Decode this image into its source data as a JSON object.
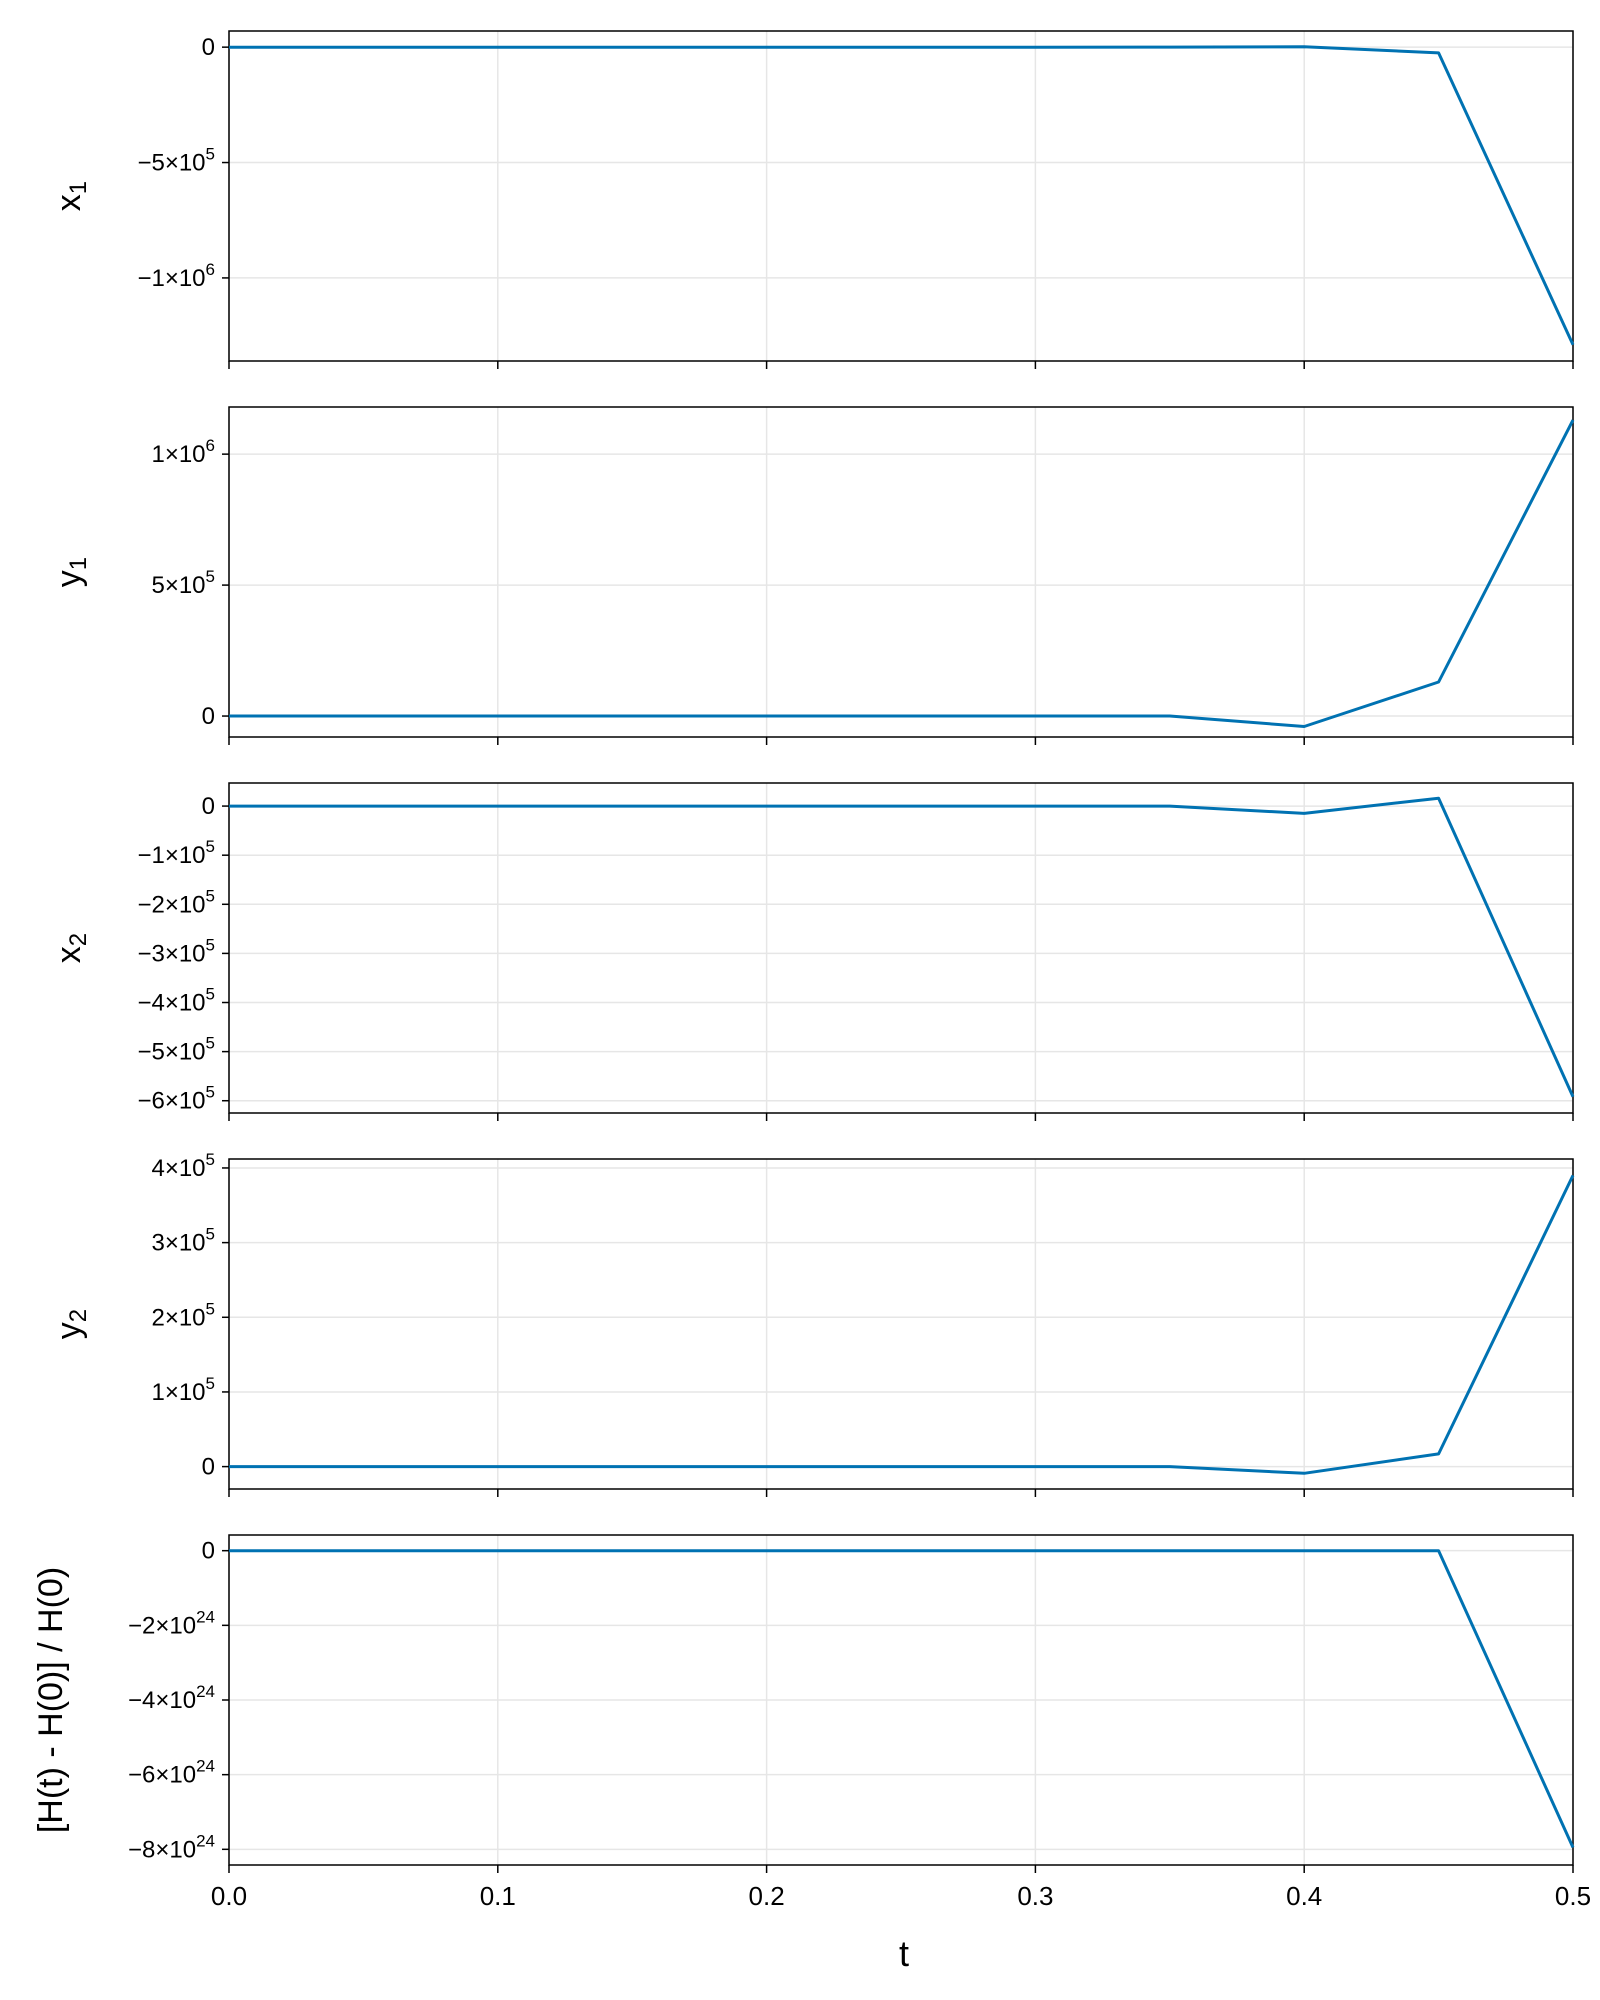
{
  "figure": {
    "xlabel": "t"
  },
  "colors": {
    "line": "#0072b2",
    "grid": "#e6e6e6",
    "frame": "#000000",
    "text": "#000000"
  },
  "chart_data": [
    {
      "type": "line",
      "ylabel_base": "x",
      "ylabel_sub": "1",
      "x": [
        0.0,
        0.05,
        0.1,
        0.15,
        0.2,
        0.25,
        0.3,
        0.35,
        0.4,
        0.45,
        0.5
      ],
      "y": [
        0,
        0,
        0,
        0,
        0,
        0,
        0,
        200,
        1500,
        -25000,
        -1290000
      ],
      "ylim": [
        -1360000,
        70000
      ],
      "yticks": [
        {
          "v": 0,
          "m": "0",
          "e": ""
        },
        {
          "v": -500000,
          "m": "−5×10",
          "e": "5"
        },
        {
          "v": -1000000,
          "m": "−1×10",
          "e": "6"
        }
      ],
      "xlim": [
        0,
        0.5
      ],
      "grid": true
    },
    {
      "type": "line",
      "ylabel_base": "y",
      "ylabel_sub": "1",
      "x": [
        0.0,
        0.05,
        0.1,
        0.15,
        0.2,
        0.25,
        0.3,
        0.35,
        0.4,
        0.45,
        0.5
      ],
      "y": [
        0,
        0,
        0,
        0,
        0,
        0,
        0,
        300,
        -40000,
        130000,
        1130000
      ],
      "ylim": [
        -80000,
        1180000
      ],
      "yticks": [
        {
          "v": 0,
          "m": "0",
          "e": ""
        },
        {
          "v": 500000,
          "m": "5×10",
          "e": "5"
        },
        {
          "v": 1000000,
          "m": "1×10",
          "e": "6"
        }
      ],
      "xlim": [
        0,
        0.5
      ],
      "grid": true
    },
    {
      "type": "line",
      "ylabel_base": "x",
      "ylabel_sub": "2",
      "x": [
        0.0,
        0.05,
        0.1,
        0.15,
        0.2,
        0.25,
        0.3,
        0.35,
        0.4,
        0.45,
        0.5
      ],
      "y": [
        0,
        0,
        0,
        0,
        0,
        0,
        0,
        0,
        -15000,
        16000,
        -592000
      ],
      "ylim": [
        -625000,
        47000
      ],
      "yticks": [
        {
          "v": 0,
          "m": "0",
          "e": ""
        },
        {
          "v": -100000,
          "m": "−1×10",
          "e": "5"
        },
        {
          "v": -200000,
          "m": "−2×10",
          "e": "5"
        },
        {
          "v": -300000,
          "m": "−3×10",
          "e": "5"
        },
        {
          "v": -400000,
          "m": "−4×10",
          "e": "5"
        },
        {
          "v": -500000,
          "m": "−5×10",
          "e": "5"
        },
        {
          "v": -600000,
          "m": "−6×10",
          "e": "5"
        }
      ],
      "xlim": [
        0,
        0.5
      ],
      "grid": true
    },
    {
      "type": "line",
      "ylabel_base": "y",
      "ylabel_sub": "2",
      "x": [
        0.0,
        0.05,
        0.1,
        0.15,
        0.2,
        0.25,
        0.3,
        0.35,
        0.4,
        0.45,
        0.5
      ],
      "y": [
        0,
        0,
        0,
        0,
        0,
        0,
        0,
        0,
        -9000,
        17000,
        390000
      ],
      "ylim": [
        -30000,
        412000
      ],
      "yticks": [
        {
          "v": 0,
          "m": "0",
          "e": ""
        },
        {
          "v": 100000,
          "m": "1×10",
          "e": "5"
        },
        {
          "v": 200000,
          "m": "2×10",
          "e": "5"
        },
        {
          "v": 300000,
          "m": "3×10",
          "e": "5"
        },
        {
          "v": 400000,
          "m": "4×10",
          "e": "5"
        }
      ],
      "xlim": [
        0,
        0.5
      ],
      "grid": true
    },
    {
      "type": "line",
      "ylabel_base": "[H(t) - H(0)] / H(0)",
      "ylabel_sub": "",
      "x": [
        0.0,
        0.05,
        0.1,
        0.15,
        0.2,
        0.25,
        0.3,
        0.35,
        0.4,
        0.45,
        0.5
      ],
      "y": [
        0,
        0,
        0,
        0,
        0,
        0,
        0,
        0,
        0,
        0,
        -7.95e+24
      ],
      "ylim": [
        -8.42e+24,
        4.2e+23
      ],
      "yticks": [
        {
          "v": 0,
          "m": "0",
          "e": ""
        },
        {
          "v": -2e+24,
          "m": "−2×10",
          "e": "24"
        },
        {
          "v": -4e+24,
          "m": "−4×10",
          "e": "24"
        },
        {
          "v": -6e+24,
          "m": "−6×10",
          "e": "24"
        },
        {
          "v": -8e+24,
          "m": "−8×10",
          "e": "24"
        }
      ],
      "xlim": [
        0,
        0.5
      ],
      "xticks": [
        {
          "v": 0.0,
          "label": "0.0"
        },
        {
          "v": 0.1,
          "label": "0.1"
        },
        {
          "v": 0.2,
          "label": "0.2"
        },
        {
          "v": 0.3,
          "label": "0.3"
        },
        {
          "v": 0.4,
          "label": "0.4"
        },
        {
          "v": 0.5,
          "label": "0.5"
        }
      ],
      "grid": true
    }
  ]
}
